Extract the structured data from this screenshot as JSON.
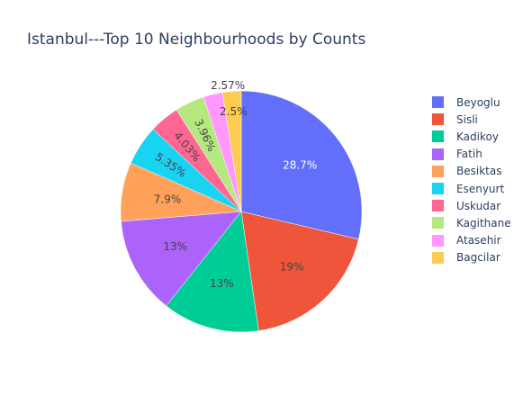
{
  "chart_data": {
    "type": "pie",
    "title": "Istanbul---Top 10 Neighbourhoods by Counts",
    "legend_position": "right",
    "slices": [
      {
        "label": "Beyoglu",
        "value": 28.7,
        "display": "28.7%",
        "color": "#636efa",
        "text_color": "#ffffff"
      },
      {
        "label": "Sisli",
        "value": 19.0,
        "display": "19%",
        "color": "#ef553b",
        "text_color": "#444444"
      },
      {
        "label": "Kadikoy",
        "value": 13.0,
        "display": "13%",
        "color": "#00cc96",
        "text_color": "#444444"
      },
      {
        "label": "Fatih",
        "value": 13.0,
        "display": "13%",
        "color": "#ab63fa",
        "text_color": "#444444"
      },
      {
        "label": "Besiktas",
        "value": 7.9,
        "display": "7.9%",
        "color": "#ffa15a",
        "text_color": "#444444"
      },
      {
        "label": "Esenyurt",
        "value": 5.35,
        "display": "5.35%",
        "color": "#19d3f3",
        "text_color": "#444444"
      },
      {
        "label": "Uskudar",
        "value": 4.03,
        "display": "4.03%",
        "color": "#ff6692",
        "text_color": "#444444"
      },
      {
        "label": "Kagithane",
        "value": 3.96,
        "display": "3.96%",
        "color": "#b6e880",
        "text_color": "#444444"
      },
      {
        "label": "Atasehir",
        "value": 2.57,
        "display": "2.57%",
        "color": "#ff97ff",
        "text_color": "#444444"
      },
      {
        "label": "Bagcilar",
        "value": 2.5,
        "display": "2.5%",
        "color": "#fecb52",
        "text_color": "#444444"
      }
    ]
  }
}
